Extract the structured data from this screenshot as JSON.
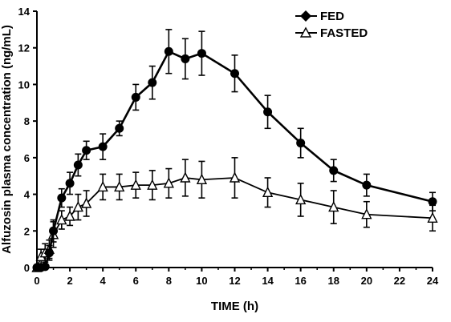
{
  "chart_data": {
    "type": "line",
    "xlabel": "TIME (h)",
    "ylabel": "Alfuzosin plasma concentration (ng/mL)",
    "xlim": [
      0,
      24
    ],
    "ylim": [
      0,
      14
    ],
    "xticks": [
      0,
      2,
      4,
      6,
      8,
      10,
      12,
      14,
      16,
      18,
      20,
      22,
      24
    ],
    "yticks": [
      0,
      2,
      4,
      6,
      8,
      10,
      12,
      14
    ],
    "grid": false,
    "legend_position": "top-right",
    "series": [
      {
        "name": "FED",
        "marker": "filled-circle",
        "legend_marker": "filled-diamond",
        "color": "#000000",
        "x": [
          0,
          0.25,
          0.5,
          0.75,
          1,
          1.5,
          2,
          2.5,
          3,
          4,
          5,
          6,
          7,
          8,
          9,
          10,
          12,
          14,
          16,
          18,
          20,
          24
        ],
        "y": [
          0,
          0,
          0.05,
          0.8,
          2.0,
          3.8,
          4.6,
          5.6,
          6.4,
          6.6,
          7.6,
          9.3,
          10.1,
          11.8,
          11.4,
          11.7,
          10.6,
          8.5,
          6.8,
          5.3,
          4.5,
          3.6
        ],
        "error": [
          0,
          0,
          0.05,
          0.4,
          0.6,
          0.5,
          0.6,
          0.6,
          0.5,
          0.7,
          0.4,
          0.7,
          0.9,
          1.2,
          1.1,
          1.2,
          1.0,
          0.9,
          0.8,
          0.6,
          0.6,
          0.5
        ]
      },
      {
        "name": "FASTED",
        "marker": "open-triangle",
        "legend_marker": "open-triangle",
        "color": "#000000",
        "x": [
          0,
          0.25,
          0.5,
          0.75,
          1,
          1.5,
          2,
          2.5,
          3,
          4,
          5,
          6,
          7,
          8,
          9,
          10,
          12,
          14,
          16,
          18,
          20,
          24
        ],
        "y": [
          0,
          0.6,
          0.8,
          1.0,
          1.8,
          2.6,
          2.8,
          3.3,
          3.5,
          4.4,
          4.4,
          4.5,
          4.5,
          4.6,
          4.9,
          4.8,
          4.9,
          4.1,
          3.7,
          3.3,
          2.9,
          2.7
        ],
        "error": [
          0,
          0.4,
          0.5,
          0.5,
          0.7,
          0.5,
          0.5,
          0.7,
          0.7,
          0.7,
          0.7,
          0.7,
          0.8,
          0.8,
          1.0,
          1.0,
          1.1,
          0.8,
          0.9,
          0.9,
          0.7,
          0.7
        ]
      }
    ]
  }
}
